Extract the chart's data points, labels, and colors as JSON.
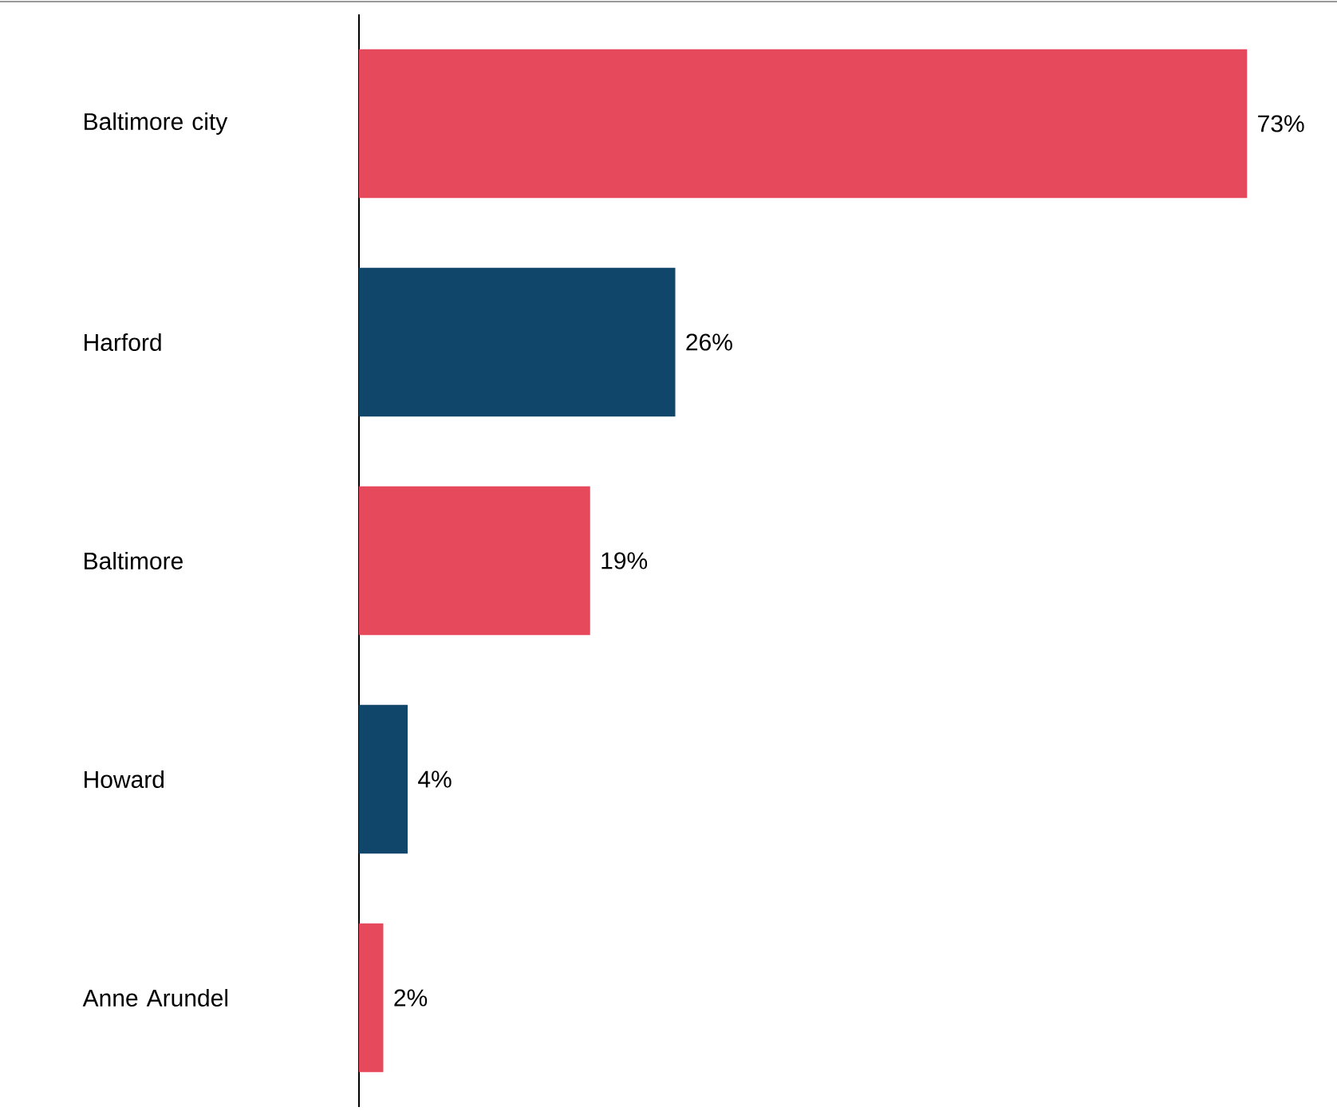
{
  "chart_data": {
    "type": "bar",
    "orientation": "horizontal",
    "categories": [
      "Baltimore city",
      "Harford",
      "Baltimore",
      "Howard",
      "Anne Arundel"
    ],
    "values": [
      73,
      26,
      19,
      4,
      2
    ],
    "colors": [
      "#e5495b",
      "#11466b",
      "#e5495b",
      "#11466b",
      "#e5495b"
    ],
    "value_labels": [
      "73%",
      "26%",
      "19%",
      "4%",
      "2%"
    ],
    "xlim": [
      0,
      80
    ],
    "tick_labels": "y"
  }
}
